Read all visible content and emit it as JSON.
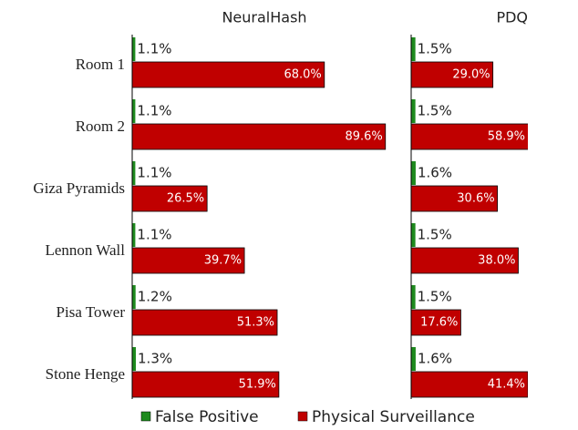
{
  "chart_data": {
    "type": "bar",
    "orientation": "horizontal",
    "categories": [
      "Room 1",
      "Room 2",
      "Giza Pyramids",
      "Lennon Wall",
      "Pisa Tower",
      "Stone Henge"
    ],
    "series": [
      {
        "name": "False Positive",
        "color": "#1e8a1e"
      },
      {
        "name": "Physical Surveillance",
        "color": "#c00000"
      }
    ],
    "panels": [
      {
        "title": "NeuralHash",
        "xlim": [
          0,
          90
        ],
        "values": [
          [
            1.1,
            1.1,
            1.1,
            1.1,
            1.2,
            1.3
          ],
          [
            68.0,
            89.6,
            26.5,
            39.7,
            51.3,
            51.9
          ]
        ],
        "value_labels": [
          [
            "1.1%",
            "1.1%",
            "1.1%",
            "1.1%",
            "1.2%",
            "1.3%"
          ],
          [
            "68.0%",
            "89.6%",
            "26.5%",
            "39.7%",
            "51.3%",
            "51.9%"
          ]
        ]
      },
      {
        "title": "PDQ",
        "xlim": [
          0,
          41.4
        ],
        "values": [
          [
            1.5,
            1.5,
            1.6,
            1.5,
            1.5,
            1.6
          ],
          [
            29.0,
            58.9,
            30.6,
            38.0,
            17.6,
            41.4
          ]
        ],
        "value_labels": [
          [
            "1.5%",
            "1.5%",
            "1.6%",
            "1.5%",
            "1.5%",
            "1.6%"
          ],
          [
            "29.0%",
            "58.9%",
            "30.6%",
            "38.0%",
            "17.6%",
            "41.4%"
          ]
        ]
      }
    ]
  }
}
